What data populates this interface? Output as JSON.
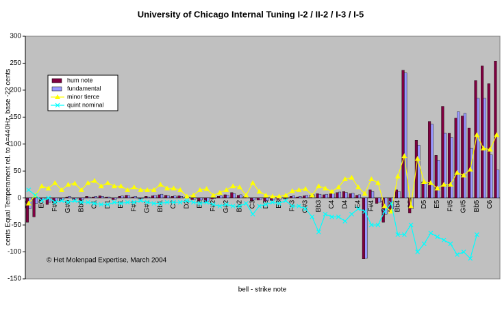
{
  "chart_data": {
    "type": "bar_line",
    "title": "University of Chicago Internal Tuning I-2 / II-2 / I-3 / I-5",
    "y_label": "cents Equal Temperament rel. to A=440Hz, base -22 cents",
    "x_label": "bell - strike note",
    "annotation": "© Het Molenpad Expertise, March 2004",
    "categories": [
      "D0",
      null,
      "E0",
      null,
      "F#0",
      null,
      "G#0",
      null,
      "Bb0",
      null,
      "C1",
      null,
      "D1",
      null,
      "E1",
      null,
      "F#1",
      null,
      "G#1",
      null,
      "Bb1",
      null,
      "C2",
      null,
      "D2",
      null,
      "E2",
      null,
      "F#2",
      null,
      "G#2",
      null,
      "Bb2",
      null,
      "C3",
      null,
      "D3",
      null,
      "E3",
      null,
      "F#3",
      null,
      "G#3",
      null,
      "Bb3",
      null,
      "C4",
      null,
      "D4",
      null,
      "E4",
      null,
      "F#4",
      null,
      "G#4",
      null,
      "Bb4",
      null,
      "C5",
      null,
      "D5",
      null,
      "E5",
      null,
      "F#5",
      null,
      "G#5",
      null,
      "Bb5",
      null,
      "C6",
      null
    ],
    "series": [
      {
        "name": "hum note",
        "kind": "bar",
        "color": "#800040",
        "values": [
          -45,
          -35,
          -5,
          -12,
          -8,
          -5,
          2,
          -3,
          -4,
          3,
          2,
          4,
          2,
          -3,
          3,
          5,
          2,
          -2,
          3,
          4,
          6,
          5,
          3,
          4,
          2,
          -3,
          -5,
          -8,
          -2,
          3,
          6,
          10,
          5,
          3,
          -5,
          -4,
          -6,
          -5,
          -3,
          -2,
          3,
          2,
          4,
          5,
          8,
          6,
          8,
          10,
          12,
          8,
          5,
          -113,
          15,
          -10,
          -45,
          -25,
          15,
          237,
          -28,
          107,
          30,
          142,
          79,
          170,
          120,
          148,
          152,
          130,
          218,
          245,
          212,
          254
        ]
      },
      {
        "name": "fundamental",
        "kind": "bar",
        "color": "#9999ff",
        "values": [
          -20,
          -10,
          -3,
          -8,
          -5,
          -3,
          3,
          -2,
          -3,
          2,
          3,
          3,
          2,
          -2,
          4,
          4,
          3,
          -1,
          2,
          5,
          7,
          4,
          4,
          3,
          2,
          -2,
          -4,
          -6,
          -1,
          4,
          5,
          8,
          6,
          2,
          -4,
          -3,
          -5,
          -4,
          -2,
          -1,
          4,
          3,
          5,
          6,
          7,
          7,
          9,
          11,
          10,
          9,
          6,
          -112,
          12,
          -8,
          -30,
          -20,
          12,
          232,
          -20,
          98,
          28,
          137,
          70,
          120,
          112,
          160,
          157,
          92,
          185,
          185,
          80,
          52
        ]
      },
      {
        "name": "minor tierce",
        "kind": "line",
        "marker": "triangle",
        "color": "#ffff00",
        "values": [
          -10,
          5,
          22,
          18,
          28,
          15,
          25,
          27,
          15,
          28,
          32,
          22,
          28,
          22,
          22,
          15,
          20,
          15,
          15,
          15,
          25,
          18,
          18,
          15,
          3,
          5,
          15,
          17,
          5,
          10,
          15,
          22,
          20,
          5,
          28,
          12,
          5,
          3,
          3,
          5,
          13,
          15,
          17,
          5,
          22,
          18,
          12,
          20,
          35,
          38,
          20,
          8,
          35,
          28,
          -15,
          -25,
          40,
          78,
          -15,
          73,
          30,
          28,
          18,
          25,
          25,
          47,
          42,
          53,
          117,
          92,
          90,
          117
        ]
      },
      {
        "name": "quint nominal",
        "kind": "line",
        "marker": "x",
        "color": "#00ffff",
        "values": [
          15,
          5,
          -5,
          0,
          -8,
          -5,
          -8,
          -5,
          -8,
          -8,
          -10,
          -12,
          -12,
          -8,
          -10,
          -8,
          -8,
          -5,
          -8,
          -10,
          -10,
          -8,
          -8,
          -8,
          -5,
          -8,
          -10,
          -8,
          -12,
          -15,
          -12,
          -15,
          -15,
          -10,
          -30,
          -15,
          -12,
          -8,
          -10,
          -5,
          -15,
          -15,
          -20,
          -35,
          -63,
          -30,
          -35,
          -35,
          -43,
          -30,
          -20,
          -25,
          -50,
          -50,
          -25,
          -10,
          -68,
          -68,
          -50,
          -100,
          -85,
          -65,
          -72,
          -78,
          -85,
          -105,
          -100,
          -112,
          -68,
          null,
          null,
          null
        ]
      }
    ],
    "ylim": [
      -150,
      300
    ],
    "yticks": [
      -150,
      -100,
      -50,
      0,
      50,
      100,
      150,
      200,
      250,
      300
    ],
    "legend": "upper left",
    "background": "#c0c0c0"
  }
}
